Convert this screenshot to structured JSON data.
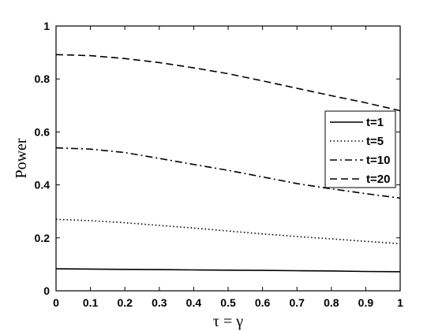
{
  "chart_data": {
    "type": "line",
    "xlabel": "τ = γ",
    "ylabel": "Power",
    "xlim": [
      0,
      1
    ],
    "ylim": [
      0,
      1
    ],
    "x_ticks": [
      "0",
      "0.1",
      "0.2",
      "0.3",
      "0.4",
      "0.5",
      "0.6",
      "0.7",
      "0.8",
      "0.9",
      "1"
    ],
    "y_ticks": [
      "0",
      "0.2",
      "0.4",
      "0.6",
      "0.8",
      "1"
    ],
    "grid": false,
    "legend_position": "right",
    "x": [
      0,
      0.1,
      0.2,
      0.3,
      0.4,
      0.5,
      0.6,
      0.7,
      0.8,
      0.9,
      1.0
    ],
    "series": [
      {
        "name": "t=1",
        "style": "solid",
        "values": [
          0.083,
          0.082,
          0.081,
          0.08,
          0.079,
          0.078,
          0.077,
          0.076,
          0.075,
          0.073,
          0.072
        ]
      },
      {
        "name": "t=5",
        "style": "dotted",
        "values": [
          0.27,
          0.265,
          0.257,
          0.247,
          0.237,
          0.226,
          0.215,
          0.205,
          0.196,
          0.187,
          0.178
        ]
      },
      {
        "name": "t=10",
        "style": "dashdot",
        "values": [
          0.54,
          0.535,
          0.522,
          0.5,
          0.477,
          0.455,
          0.43,
          0.405,
          0.385,
          0.367,
          0.35
        ]
      },
      {
        "name": "t=20",
        "style": "dashed",
        "values": [
          0.892,
          0.888,
          0.877,
          0.862,
          0.842,
          0.82,
          0.793,
          0.765,
          0.737,
          0.71,
          0.68
        ]
      }
    ]
  }
}
